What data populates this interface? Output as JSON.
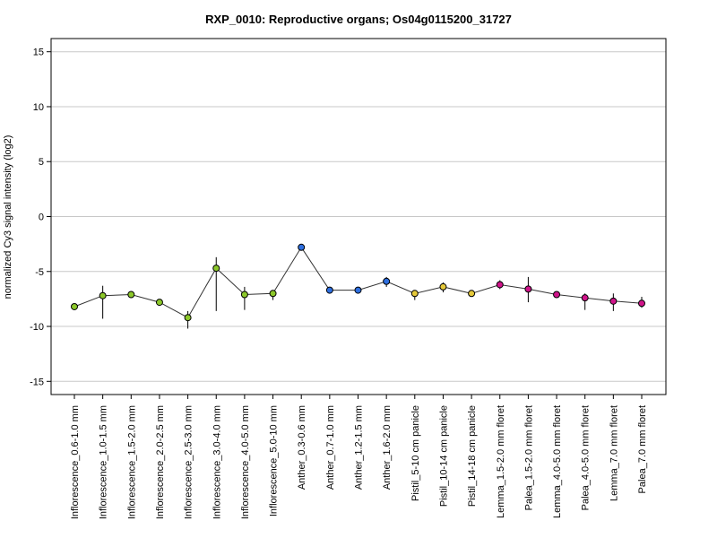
{
  "chart_data": {
    "type": "line",
    "title": "RXP_0010: Reproductive organs; Os04g0115200_31727",
    "ylabel": "normalized Cy3 signal intensity (log2)",
    "xlabel": "",
    "ylim": [
      -16.2,
      16.2
    ],
    "yticks": [
      15,
      10,
      5,
      0,
      -5,
      -10,
      -15
    ],
    "grid": "horizontal",
    "legend": "none",
    "categories": [
      "Inflorescence_0.6-1.0 mm",
      "Inflorescence_1.0-1.5 mm",
      "Inflorescence_1.5-2.0 mm",
      "Inflorescence_2.0-2.5 mm",
      "Inflorescence_2.5-3.0 mm",
      "Inflorescence_3.0-4.0 mm",
      "Inflorescence_4.0-5.0 mm",
      "Inflorescence_5.0-10 mm",
      "Anther_0.3-0.6 mm",
      "Anther_0.7-1.0 mm",
      "Anther_1.2-1.5 mm",
      "Anther_1.6-2.0 mm",
      "Pistil_5-10 cm panicle",
      "Pistil_10-14 cm panicle",
      "Pistil_14-18 cm panicle",
      "Lemma_1.5-2.0 mm floret",
      "Palea_1.5-2.0 mm floret",
      "Lemma_4.0-5.0 mm floret",
      "Palea_4.0-5.0 mm floret",
      "Lemma_7.0 mm floret",
      "Palea_7.0 mm floret"
    ],
    "values": [
      -8.2,
      -7.2,
      -7.1,
      -7.8,
      -9.2,
      -4.7,
      -7.1,
      -7.0,
      -2.8,
      -6.7,
      -6.7,
      -5.9,
      -7.0,
      -6.4,
      -7.0,
      -6.2,
      -6.6,
      -7.1,
      -7.4,
      -7.7,
      -7.9
    ],
    "err_low": [
      -8.2,
      -9.3,
      -7.2,
      -7.9,
      -10.2,
      -8.6,
      -8.5,
      -7.6,
      -2.9,
      -6.9,
      -6.9,
      -6.4,
      -7.6,
      -6.9,
      -7.1,
      -6.6,
      -7.8,
      -7.3,
      -8.5,
      -8.6,
      -8.3
    ],
    "err_high": [
      -8.1,
      -6.3,
      -6.9,
      -7.7,
      -8.6,
      -3.7,
      -6.4,
      -6.7,
      -2.7,
      -6.5,
      -6.5,
      -5.5,
      -6.8,
      -6.0,
      -6.9,
      -5.8,
      -5.5,
      -6.9,
      -7.0,
      -7.0,
      -7.3
    ],
    "colors": [
      "#8CC82A",
      "#8CC82A",
      "#8CC82A",
      "#8CC82A",
      "#8CC82A",
      "#8CC82A",
      "#8CC82A",
      "#8CC82A",
      "#2E6FE0",
      "#2E6FE0",
      "#2E6FE0",
      "#2E6FE0",
      "#E5C93A",
      "#E5C93A",
      "#E5C93A",
      "#D0148A",
      "#D0148A",
      "#D0148A",
      "#D0148A",
      "#D0148A",
      "#D0148A"
    ]
  }
}
